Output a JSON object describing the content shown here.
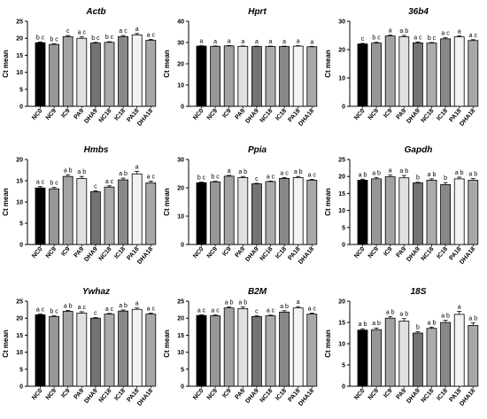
{
  "chart_data": [
    {
      "type": "bar",
      "title": "Actb",
      "ylabel": "Ct mean",
      "ylim": [
        0,
        25
      ],
      "yticks": [
        0,
        5,
        10,
        15,
        20,
        25
      ],
      "categories": [
        "NC0",
        "NC9",
        "IC9",
        "PA9",
        "DHA9",
        "NC18",
        "IC18",
        "PA18",
        "DHA18"
      ],
      "values": [
        18.7,
        18.2,
        20.5,
        20.0,
        18.6,
        18.8,
        20.5,
        21.0,
        19.4
      ],
      "errors": [
        0.2,
        0.2,
        0.3,
        0.4,
        0.2,
        0.2,
        0.3,
        0.4,
        0.3
      ],
      "labels": [
        "b c",
        "b c",
        "c",
        "a c",
        "b c",
        "b c",
        "a c",
        "a",
        "a c"
      ]
    },
    {
      "type": "bar",
      "title": "Hprt",
      "ylabel": "Ct mean",
      "ylim": [
        0,
        40
      ],
      "yticks": [
        0,
        10,
        20,
        30,
        40
      ],
      "categories": [
        "NC0",
        "NC9",
        "IC9",
        "PA9",
        "DHA9",
        "NC18",
        "IC18",
        "PA18",
        "DHA18"
      ],
      "values": [
        28.3,
        28.2,
        28.4,
        28.2,
        28.1,
        28.1,
        28.1,
        28.3,
        28.0
      ],
      "errors": [
        0.2,
        0.2,
        0.2,
        0.2,
        0.2,
        0.2,
        0.2,
        0.2,
        0.2
      ],
      "labels": [
        "a",
        "a",
        "a",
        "a",
        "a",
        "a",
        "a",
        "a",
        "a"
      ]
    },
    {
      "type": "bar",
      "title": "36b4",
      "ylabel": "Ct mean",
      "ylim": [
        0,
        30
      ],
      "yticks": [
        0,
        10,
        20,
        30
      ],
      "categories": [
        "NC0",
        "NC9",
        "IC9",
        "PA9",
        "DHA9",
        "NC18",
        "IC18",
        "PA18",
        "DHA18"
      ],
      "values": [
        22.0,
        22.3,
        24.8,
        24.5,
        22.4,
        22.3,
        23.8,
        24.5,
        23.2
      ],
      "errors": [
        0.2,
        0.3,
        0.3,
        0.5,
        0.3,
        0.2,
        0.4,
        0.4,
        0.3
      ],
      "labels": [
        "c",
        "b c",
        "a",
        "a b",
        "a c",
        "b c",
        "a c",
        "a",
        "a c"
      ]
    },
    {
      "type": "bar",
      "title": "Hmbs",
      "ylabel": "Ct mean",
      "ylim": [
        0,
        20
      ],
      "yticks": [
        0,
        5,
        10,
        15,
        20
      ],
      "categories": [
        "NC0",
        "NC9",
        "IC9",
        "PA9",
        "DHA9",
        "NC18",
        "IC18",
        "PA18",
        "DHA18"
      ],
      "values": [
        13.3,
        13.1,
        16.0,
        15.5,
        12.4,
        13.5,
        15.2,
        16.6,
        14.5
      ],
      "errors": [
        0.3,
        0.3,
        0.4,
        0.5,
        0.2,
        0.3,
        0.4,
        0.6,
        0.4
      ],
      "labels": [
        "a c",
        "b c",
        "a b",
        "a b",
        "c",
        "a c",
        "a b",
        "a",
        "a c"
      ]
    },
    {
      "type": "bar",
      "title": "Ppia",
      "ylabel": "Ct mean",
      "ylim": [
        0,
        30
      ],
      "yticks": [
        0,
        10,
        20,
        30
      ],
      "categories": [
        "NC0",
        "NC9",
        "IC9",
        "PA9",
        "DHA9",
        "NC18",
        "IC18",
        "PA18",
        "DHA18"
      ],
      "values": [
        21.8,
        22.1,
        24.1,
        23.6,
        21.4,
        22.2,
        23.3,
        23.6,
        22.7
      ],
      "errors": [
        0.2,
        0.2,
        0.3,
        0.4,
        0.2,
        0.2,
        0.3,
        0.4,
        0.3
      ],
      "labels": [
        "b c",
        "b c",
        "a",
        "a b",
        "c",
        "a c",
        "a c",
        "a b",
        "a c"
      ]
    },
    {
      "type": "bar",
      "title": "Gapdh",
      "ylabel": "Ct mean",
      "ylim": [
        0,
        25
      ],
      "yticks": [
        0,
        5,
        10,
        15,
        20,
        25
      ],
      "categories": [
        "NC0",
        "NC9",
        "IC9",
        "PA9",
        "DHA9",
        "NC18",
        "IC18",
        "PA18",
        "DHA18"
      ],
      "values": [
        18.9,
        19.3,
        19.9,
        19.6,
        18.1,
        18.9,
        17.6,
        19.3,
        18.9
      ],
      "errors": [
        0.3,
        0.4,
        0.5,
        0.7,
        0.2,
        0.4,
        0.6,
        0.5,
        0.5
      ],
      "labels": [
        "a b",
        "a b",
        "a",
        "a b",
        "b",
        "a b",
        "b",
        "a b",
        "a b"
      ]
    },
    {
      "type": "bar",
      "title": "Ywhaz",
      "ylabel": "Ct mean",
      "ylim": [
        0,
        25
      ],
      "yticks": [
        0,
        5,
        10,
        15,
        20,
        25
      ],
      "categories": [
        "NC0",
        "NC9",
        "IC9",
        "PA9",
        "DHA9",
        "NC18",
        "IC18",
        "PA18",
        "DHA18"
      ],
      "values": [
        21.0,
        20.5,
        22.0,
        21.5,
        20.0,
        21.2,
        22.1,
        22.6,
        21.2
      ],
      "errors": [
        0.2,
        0.2,
        0.3,
        0.4,
        0.2,
        0.2,
        0.3,
        0.4,
        0.3
      ],
      "labels": [
        "a c",
        "b c",
        "a b",
        "a c",
        "c",
        "a c",
        "a b",
        "a",
        "a c"
      ]
    },
    {
      "type": "bar",
      "title": "B2M",
      "ylabel": "Ct mean",
      "ylim": [
        0,
        25
      ],
      "yticks": [
        0,
        5,
        10,
        15,
        20,
        25
      ],
      "categories": [
        "NC0",
        "NC9",
        "IC9",
        "PA9",
        "DHA9",
        "NC18",
        "IC18",
        "PA18",
        "DHA18"
      ],
      "values": [
        20.8,
        20.7,
        23.0,
        22.8,
        20.5,
        20.7,
        21.8,
        23.0,
        21.2
      ],
      "errors": [
        0.2,
        0.3,
        0.3,
        0.5,
        0.2,
        0.2,
        0.4,
        0.4,
        0.3
      ],
      "labels": [
        "a c",
        "a c",
        "a b",
        "a b",
        "c",
        "a c",
        "a b",
        "a",
        "a c"
      ]
    },
    {
      "type": "bar",
      "title": "18S",
      "ylabel": "Ct mean",
      "ylim": [
        0,
        20
      ],
      "yticks": [
        0,
        5,
        10,
        15,
        20
      ],
      "categories": [
        "NC0",
        "NC9",
        "IC9",
        "PA9",
        "DHA9",
        "NC18",
        "IC18",
        "PA18",
        "DHA18"
      ],
      "values": [
        13.2,
        13.3,
        16.0,
        15.3,
        12.5,
        13.6,
        15.0,
        16.9,
        14.3
      ],
      "errors": [
        0.3,
        0.4,
        0.4,
        0.6,
        0.3,
        0.3,
        0.5,
        0.7,
        0.6
      ],
      "labels": [
        "a b",
        "a b",
        "a b",
        "a b",
        "b",
        "a b",
        "a b",
        "a",
        "a b"
      ]
    }
  ],
  "colors": {
    "bars": [
      "#000000",
      "#979797",
      "#a3a3a3",
      "#e0e0e0",
      "#737373",
      "#ababab",
      "#888888",
      "#f3f3f3",
      "#a8a8a8"
    ],
    "edge": "#000000",
    "background": "#ffffff"
  }
}
